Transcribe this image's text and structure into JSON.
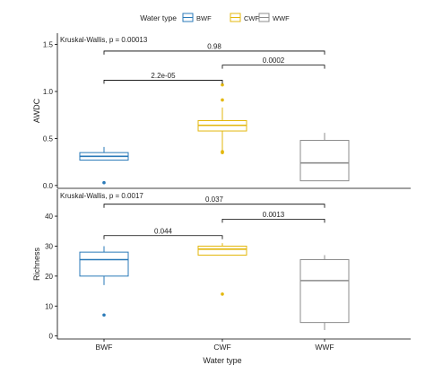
{
  "colors": {
    "BWF": "#2a7ab8",
    "CWF": "#e3b70c",
    "WWF": "#8c8c8c",
    "axis": "#000000",
    "text": "#222222"
  },
  "legend": {
    "title": "Water type",
    "items": [
      {
        "label": "BWF",
        "color": "#2a7ab8"
      },
      {
        "label": "CWF",
        "color": "#e3b70c"
      },
      {
        "label": "WWF",
        "color": "#8c8c8c"
      }
    ]
  },
  "x_axis": {
    "title": "Water type",
    "categories": [
      "BWF",
      "CWF",
      "WWF"
    ]
  },
  "chart_data": [
    {
      "type": "box",
      "ylabel": "AWDC",
      "ylim": [
        -0.03,
        1.62
      ],
      "yticks": [
        0.0,
        0.5,
        1.0,
        1.5
      ],
      "ytick_labels": [
        "0.0",
        "0.5",
        "1.0",
        "1.5"
      ],
      "categories": [
        "BWF",
        "CWF",
        "WWF"
      ],
      "test_label": "Kruskal-Wallis, p = 0.00013",
      "boxes": [
        {
          "group": "BWF",
          "whisker_low": 0.27,
          "q1": 0.27,
          "median": 0.31,
          "q3": 0.35,
          "whisker_high": 0.41,
          "outliers": [
            0.03
          ]
        },
        {
          "group": "CWF",
          "whisker_low": 0.36,
          "q1": 0.58,
          "median": 0.64,
          "q3": 0.69,
          "whisker_high": 0.83,
          "outliers": [
            0.36,
            0.35,
            0.91,
            1.07
          ]
        },
        {
          "group": "WWF",
          "whisker_low": 0.05,
          "q1": 0.05,
          "median": 0.24,
          "q3": 0.48,
          "whisker_high": 0.56,
          "outliers": []
        }
      ],
      "comparisons": [
        {
          "from": "BWF",
          "to": "CWF",
          "label": "2.2e-05",
          "y": 1.12
        },
        {
          "from": "CWF",
          "to": "WWF",
          "label": "0.0002",
          "y": 1.28
        },
        {
          "from": "BWF",
          "to": "WWF",
          "label": "0.98",
          "y": 1.43
        }
      ]
    },
    {
      "type": "box",
      "ylabel": "Richness",
      "ylim": [
        -1,
        49
      ],
      "yticks": [
        0,
        10,
        20,
        30,
        40
      ],
      "ytick_labels": [
        "0",
        "10",
        "20",
        "30",
        "40"
      ],
      "categories": [
        "BWF",
        "CWF",
        "WWF"
      ],
      "test_label": "Kruskal-Wallis, p = 0.0017",
      "boxes": [
        {
          "group": "BWF",
          "whisker_low": 17,
          "q1": 20,
          "median": 25.5,
          "q3": 28,
          "whisker_high": 30,
          "outliers": [
            7
          ]
        },
        {
          "group": "CWF",
          "whisker_low": 27,
          "q1": 27,
          "median": 29,
          "q3": 30,
          "whisker_high": 31,
          "outliers": [
            14
          ]
        },
        {
          "group": "WWF",
          "whisker_low": 2,
          "q1": 4.5,
          "median": 18.5,
          "q3": 25.5,
          "whisker_high": 27,
          "outliers": []
        }
      ],
      "comparisons": [
        {
          "from": "BWF",
          "to": "CWF",
          "label": "0.044",
          "y": 33.5
        },
        {
          "from": "CWF",
          "to": "WWF",
          "label": "0.0013",
          "y": 39
        },
        {
          "from": "BWF",
          "to": "WWF",
          "label": "0.037",
          "y": 44
        }
      ]
    }
  ]
}
